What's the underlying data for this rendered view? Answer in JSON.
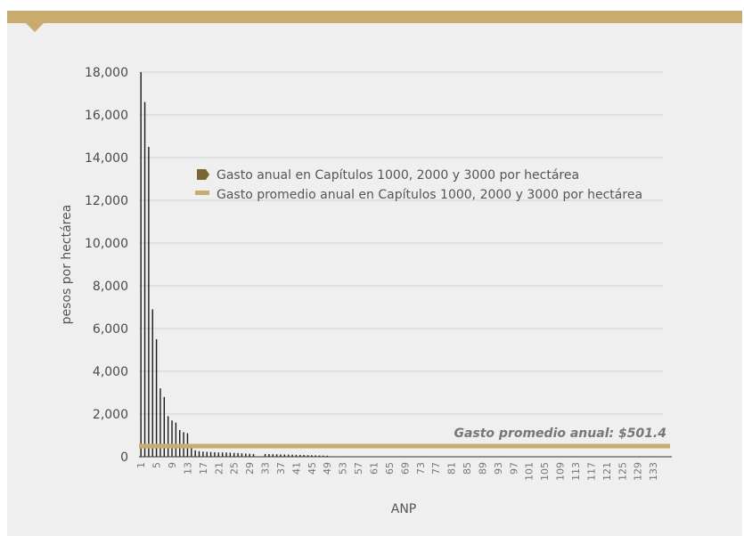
{
  "chart_data": {
    "type": "bar",
    "xlabel": "ANP",
    "ylabel": "pesos por hectárea",
    "ylim": [
      0,
      18000
    ],
    "yticks": [
      0,
      2000,
      4000,
      6000,
      8000,
      10000,
      12000,
      14000,
      16000,
      18000
    ],
    "ytick_labels": [
      "0",
      "2,000",
      "4,000",
      "6,000",
      "8,000",
      "10,000",
      "12,000",
      "14,000",
      "16,000",
      "18,000"
    ],
    "x_count": 135,
    "xtick_labels": [
      "1",
      "5",
      "9",
      "13",
      "17",
      "21",
      "25",
      "29",
      "33",
      "37",
      "41",
      "45",
      "49",
      "53",
      "57",
      "61",
      "65",
      "69",
      "73",
      "77",
      "81",
      "85",
      "89",
      "93",
      "97",
      "101",
      "105",
      "109",
      "113",
      "117",
      "121",
      "125",
      "129",
      "133"
    ],
    "xtick_values": [
      1,
      5,
      9,
      13,
      17,
      21,
      25,
      29,
      33,
      37,
      41,
      45,
      49,
      53,
      57,
      61,
      65,
      69,
      73,
      77,
      81,
      85,
      89,
      93,
      97,
      101,
      105,
      109,
      113,
      117,
      121,
      125,
      129,
      133
    ],
    "grid": true,
    "legend_position": "top-right",
    "series": [
      {
        "name": "Gasto anual en Capítulos 1000, 2000 y 3000 por hectárea",
        "kind": "bar",
        "color": "#1a1a1a",
        "legend_marker_color": "#7b6531",
        "values": [
          18000,
          16600,
          14500,
          6900,
          5500,
          3200,
          2800,
          1900,
          1700,
          1600,
          1250,
          1150,
          1100,
          500,
          300,
          260,
          240,
          230,
          220,
          210,
          200,
          200,
          200,
          190,
          180,
          170,
          160,
          150,
          140,
          130,
          0,
          0,
          130,
          125,
          120,
          115,
          110,
          105,
          100,
          95,
          90,
          85,
          80,
          75,
          70,
          65,
          60,
          55,
          50,
          0,
          0,
          0,
          0,
          0,
          0,
          0,
          0,
          0,
          0,
          0,
          0,
          0,
          0,
          0,
          0,
          0,
          0,
          0,
          0,
          0,
          0,
          0,
          0,
          0,
          0,
          0,
          0,
          0,
          0,
          0,
          0,
          0,
          0,
          0,
          0,
          0,
          0,
          0,
          0,
          0,
          0,
          0,
          0,
          0,
          0,
          0,
          0,
          0,
          0,
          0,
          0,
          0,
          0,
          0,
          0,
          0,
          0,
          0,
          0,
          0,
          0,
          0,
          0,
          0,
          0,
          0,
          0,
          0,
          0,
          0,
          0,
          0,
          0,
          0,
          0,
          0,
          0,
          0,
          0,
          0,
          0,
          0,
          0,
          0,
          0
        ]
      },
      {
        "name": "Gasto promedio anual en Capítulos 1000, 2000 y 3000 por hectárea",
        "kind": "line",
        "color": "#c9ab6e",
        "value": 501.4
      }
    ],
    "annotation": "Gasto promedio anual: $501.4"
  }
}
